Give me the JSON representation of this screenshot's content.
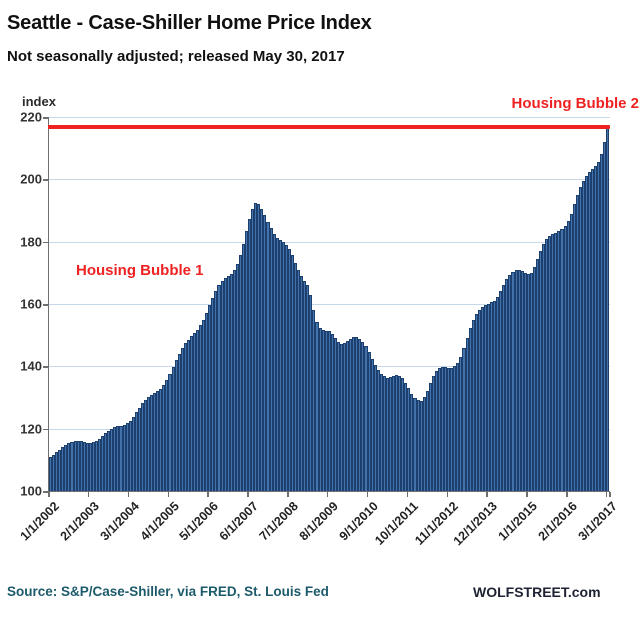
{
  "header": {
    "title": "Seattle - Case-Shiller Home Price Index",
    "subtitle": "Not seasonally adjusted; released May 30, 2017"
  },
  "footer": {
    "source": "Source: S&P/Case-Shiller, via FRED,  St. Louis Fed",
    "brand": "WOLFSTREET.com"
  },
  "colors": {
    "bar_fill": "#4273ad",
    "bar_border": "#1c3f6e",
    "red": "#ee2222",
    "gridline": "#c6d9ec",
    "axis": "#6f6f6f",
    "source_text": "#1d5a6b"
  },
  "chart_data": {
    "type": "bar",
    "title": "Seattle - Case-Shiller Home Price Index",
    "subtitle": "Not seasonally adjusted; released May 30, 2017",
    "ylabel": "index",
    "ylim": [
      100,
      220
    ],
    "grid": true,
    "y_ticks": [
      100,
      120,
      140,
      160,
      180,
      200,
      220
    ],
    "x_tick_labels": [
      "1/1/2002",
      "2/1/2003",
      "3/1/2004",
      "4/1/2005",
      "5/1/2006",
      "6/1/2007",
      "7/1/2008",
      "8/1/2009",
      "9/1/2010",
      "10/1/2011",
      "11/1/2012",
      "12/1/2013",
      "1/1/2015",
      "2/1/2016",
      "3/1/2017"
    ],
    "x_tick_interval_months": 13,
    "start_month": "1/2002",
    "end_month": "3/2017",
    "annotations": [
      {
        "text": "Housing Bubble 1",
        "color": "#ee2222"
      },
      {
        "text": "Housing Bubble 2",
        "color": "#ee2222"
      }
    ],
    "red_line": {
      "value": 216.8,
      "label": "Housing Bubble 2"
    },
    "values": [
      111.0,
      111.6,
      112.4,
      113.3,
      114.1,
      114.8,
      115.3,
      115.7,
      115.9,
      116.0,
      115.9,
      115.7,
      115.5,
      115.4,
      115.6,
      116.1,
      116.8,
      117.6,
      118.5,
      119.3,
      120.0,
      120.5,
      120.8,
      121.0,
      121.2,
      121.7,
      122.6,
      123.8,
      125.2,
      126.7,
      128.1,
      129.3,
      130.2,
      130.9,
      131.5,
      132.1,
      132.8,
      134.0,
      135.6,
      137.6,
      139.8,
      142.0,
      144.1,
      145.9,
      147.4,
      148.6,
      149.7,
      150.7,
      151.8,
      153.2,
      155.0,
      157.2,
      159.6,
      162.0,
      164.2,
      166.1,
      167.4,
      168.3,
      168.9,
      169.5,
      170.8,
      172.9,
      175.8,
      179.4,
      183.4,
      187.4,
      190.6,
      192.3,
      192.0,
      190.6,
      188.5,
      186.2,
      184.3,
      182.6,
      181.2,
      180.4,
      179.8,
      179.0,
      177.6,
      175.6,
      173.2,
      171.0,
      169.0,
      167.5,
      166.0,
      162.8,
      158.2,
      154.2,
      152.4,
      151.8,
      151.5,
      151.2,
      150.5,
      149.2,
      147.9,
      147.2,
      147.4,
      148.1,
      148.9,
      149.4,
      149.3,
      148.7,
      147.9,
      146.6,
      144.6,
      142.5,
      140.4,
      138.9,
      137.7,
      136.8,
      136.3,
      136.6,
      137.0,
      137.2,
      136.9,
      136.2,
      134.8,
      132.9,
      131.0,
      129.8,
      129.3,
      129.0,
      130.2,
      132.2,
      134.6,
      136.8,
      138.4,
      139.4,
      139.8,
      139.7,
      139.5,
      139.6,
      140.1,
      141.0,
      143.0,
      146.0,
      149.2,
      152.3,
      154.9,
      156.9,
      158.1,
      159.0,
      159.6,
      160.1,
      160.5,
      161.1,
      162.3,
      164.1,
      166.1,
      167.9,
      169.3,
      170.3,
      170.9,
      171.0,
      170.6,
      170.0,
      169.5,
      170.0,
      171.8,
      174.4,
      177.1,
      179.3,
      180.9,
      181.9,
      182.4,
      182.9,
      183.4,
      184.0,
      185.0,
      186.6,
      189.0,
      192.0,
      195.0,
      197.6,
      199.6,
      201.1,
      202.2,
      203.2,
      204.2,
      205.5,
      208.0,
      212.0,
      216.8
    ]
  }
}
